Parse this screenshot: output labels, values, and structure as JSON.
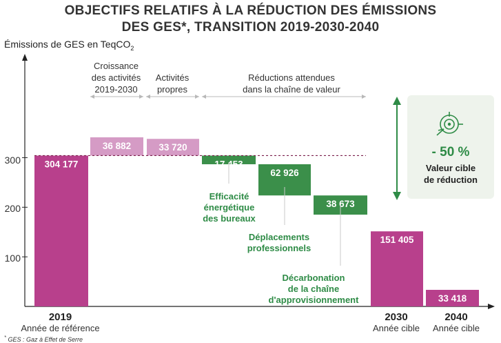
{
  "title_line1": "OBJECTIFS RELATIFS À LA RÉDUCTION DES ÉMISSIONS",
  "title_line2": "DES GES*, TRANSITION 2019-2030-2040",
  "ylabel_text": "Émissions de GES en TeqCO",
  "ylabel_sub": "2",
  "footnote": "GES : Gaz à Effet de Serre",
  "footnote_mark": "*",
  "segments": {
    "growth": [
      "Croissance",
      "des activités",
      "2019-2030"
    ],
    "clean": [
      "Activités",
      "propres"
    ],
    "value_chain": [
      "Réductions attendues",
      "dans la chaîne de valeur"
    ]
  },
  "annotations": {
    "efficiency": [
      "Efficacité",
      "énergétique",
      "des bureaux"
    ],
    "travel": [
      "Déplacements",
      "professionnels"
    ],
    "supply": [
      "Décarbonation",
      "de la chaîne",
      "d'approvisionnement"
    ]
  },
  "x_categories": {
    "y2019": {
      "year": "2019",
      "label": "Année de référence"
    },
    "y2030": {
      "year": "2030",
      "label": "Année cible"
    },
    "y2040": {
      "year": "2040",
      "label": "Année cible"
    }
  },
  "target": {
    "pct": "- 50 %",
    "label": [
      "Valeur cible",
      "de réduction"
    ]
  },
  "chart_data": {
    "type": "bar",
    "title": "OBJECTIFS RELATIFS À LA RÉDUCTION DES ÉMISSIONS DES GES*, TRANSITION 2019-2030-2040",
    "ylabel": "Émissions de GES en TeqCO2",
    "yticks": [
      100,
      200,
      300
    ],
    "ylim": [
      0,
      500
    ],
    "grid": false,
    "reference_line": 304.177,
    "bars": [
      {
        "label": "304 177",
        "value": 304177,
        "base": 0,
        "kind": "total"
      },
      {
        "label": "36 882",
        "value": 36882,
        "base": 304177,
        "kind": "increase"
      },
      {
        "label": "33 720",
        "value": 33720,
        "base": 304177,
        "kind": "increase"
      },
      {
        "label": "17 453",
        "value": 17453,
        "base": 286724,
        "kind": "decrease"
      },
      {
        "label": "62 926",
        "value": 62926,
        "base": 223798,
        "kind": "decrease"
      },
      {
        "label": "38 673",
        "value": 38673,
        "base": 185125,
        "kind": "decrease"
      },
      {
        "label": "151 405",
        "value": 151405,
        "base": 0,
        "kind": "total"
      },
      {
        "label": "33 418",
        "value": 33418,
        "base": 0,
        "kind": "total"
      }
    ],
    "colors": {
      "total": "#b8408c",
      "increase": "#d59bc5",
      "decrease": "#3b8f4a",
      "accent": "#2e8b46"
    }
  }
}
